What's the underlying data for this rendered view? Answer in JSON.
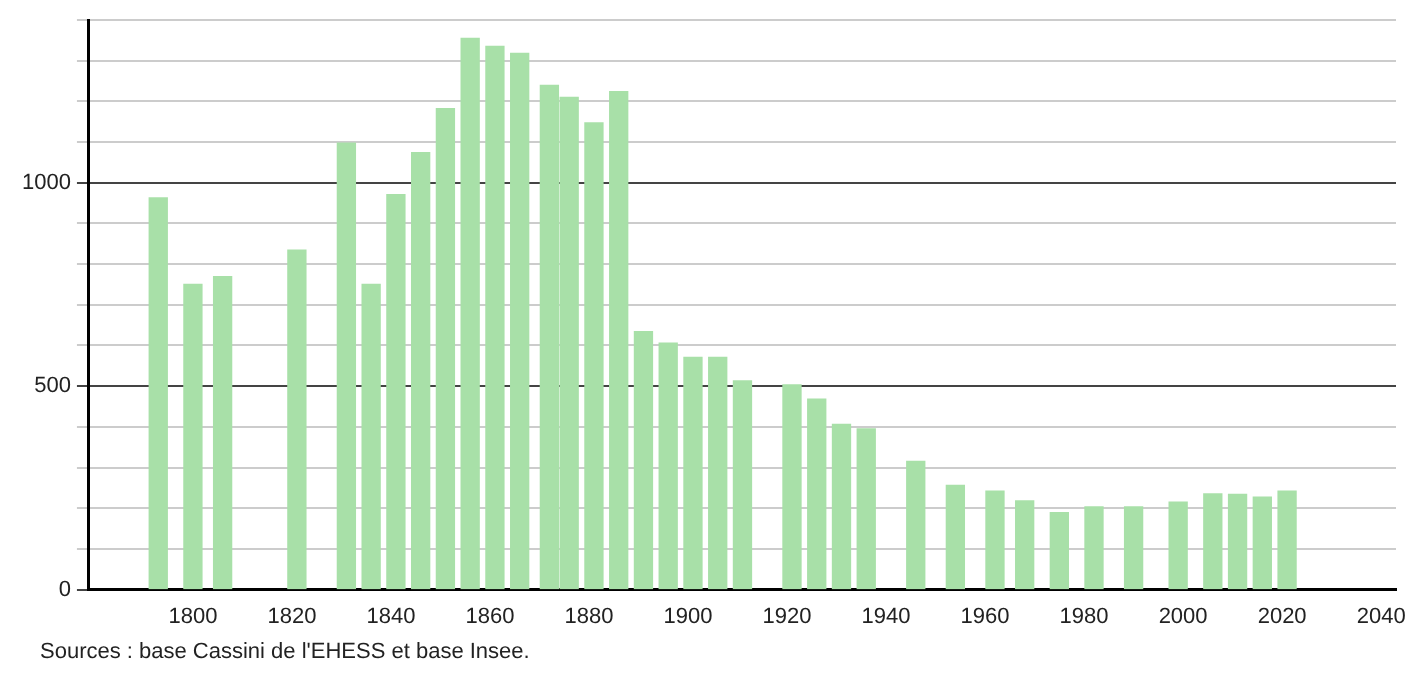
{
  "chart_data": {
    "type": "bar",
    "x": [
      1793,
      1800,
      1806,
      1821,
      1831,
      1836,
      1841,
      1846,
      1851,
      1856,
      1861,
      1866,
      1872,
      1876,
      1881,
      1886,
      1891,
      1896,
      1901,
      1906,
      1911,
      1921,
      1926,
      1931,
      1936,
      1946,
      1954,
      1962,
      1968,
      1975,
      1982,
      1990,
      1999,
      2006,
      2011,
      2016,
      2021
    ],
    "values": [
      963,
      750,
      769,
      834,
      1097,
      750,
      971,
      1074,
      1182,
      1355,
      1335,
      1318,
      1239,
      1210,
      1147,
      1224,
      634,
      606,
      571,
      571,
      513,
      503,
      468,
      406,
      395,
      315,
      256,
      242,
      218,
      189,
      203,
      203,
      215,
      235,
      234,
      227,
      242
    ],
    "color": "#a8e0a8",
    "xlim": [
      1779,
      2043
    ],
    "xticks": [
      1800,
      1820,
      1840,
      1860,
      1880,
      1900,
      1920,
      1940,
      1960,
      1980,
      2000,
      2020,
      2040
    ],
    "ylim": [
      0,
      1400
    ],
    "yticks": [
      0,
      {
        "value": 100,
        "label": null
      },
      {
        "value": 200,
        "label": null
      },
      {
        "value": 300,
        "label": null
      },
      {
        "value": 400,
        "label": null
      },
      500,
      {
        "value": 600,
        "label": null
      },
      {
        "value": 700,
        "label": null
      },
      {
        "value": 800,
        "label": null
      },
      {
        "value": 900,
        "label": null
      },
      1000,
      {
        "value": 1100,
        "label": null
      },
      {
        "value": 1200,
        "label": null
      },
      {
        "value": 1300,
        "label": null
      },
      {
        "value": 1400,
        "label": null
      }
    ],
    "grid": "y",
    "annotations": [
      "Sources : base Cassini de l'EHESS et base Insee."
    ]
  }
}
